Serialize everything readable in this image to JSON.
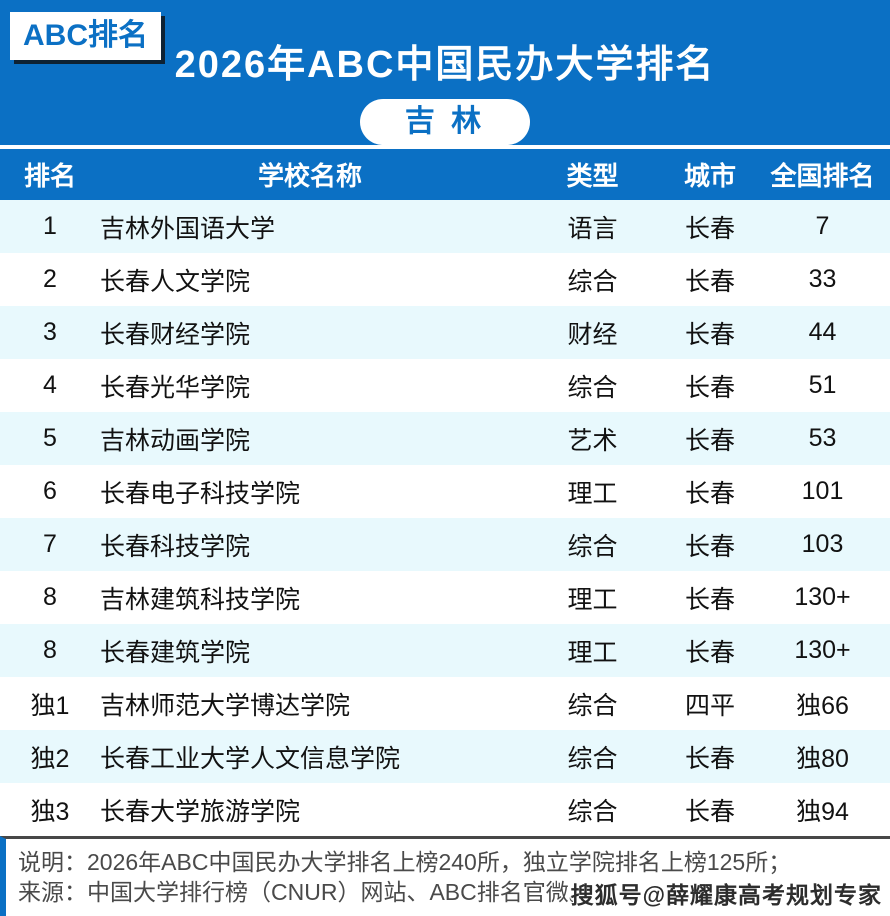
{
  "banner": {
    "badge": "ABC排名",
    "title": "2026年ABC中国民办大学排名",
    "region": "吉 林"
  },
  "colors": {
    "primary": "#0b70c4",
    "stripe": "#e8f9fd",
    "footer_text": "#4a4a4a"
  },
  "table": {
    "headers": {
      "rank": "排名",
      "school": "学校名称",
      "type": "类型",
      "city": "城市",
      "national": "全国排名"
    },
    "rows": [
      {
        "rank": "1",
        "school": "吉林外国语大学",
        "type": "语言",
        "city": "长春",
        "national": "7"
      },
      {
        "rank": "2",
        "school": "长春人文学院",
        "type": "综合",
        "city": "长春",
        "national": "33"
      },
      {
        "rank": "3",
        "school": "长春财经学院",
        "type": "财经",
        "city": "长春",
        "national": "44"
      },
      {
        "rank": "4",
        "school": "长春光华学院",
        "type": "综合",
        "city": "长春",
        "national": "51"
      },
      {
        "rank": "5",
        "school": "吉林动画学院",
        "type": "艺术",
        "city": "长春",
        "national": "53"
      },
      {
        "rank": "6",
        "school": "长春电子科技学院",
        "type": "理工",
        "city": "长春",
        "national": "101"
      },
      {
        "rank": "7",
        "school": "长春科技学院",
        "type": "综合",
        "city": "长春",
        "national": "103"
      },
      {
        "rank": "8",
        "school": "吉林建筑科技学院",
        "type": "理工",
        "city": "长春",
        "national": "130+"
      },
      {
        "rank": "8",
        "school": "长春建筑学院",
        "type": "理工",
        "city": "长春",
        "national": "130+"
      },
      {
        "rank": "独1",
        "school": "吉林师范大学博达学院",
        "type": "综合",
        "city": "四平",
        "national": "独66"
      },
      {
        "rank": "独2",
        "school": "长春工业大学人文信息学院",
        "type": "综合",
        "city": "长春",
        "national": "独80"
      },
      {
        "rank": "独3",
        "school": "长春大学旅游学院",
        "type": "综合",
        "city": "长春",
        "national": "独94"
      }
    ]
  },
  "footer": {
    "note": "说明：2026年ABC中国民办大学排名上榜240所，独立学院排名上榜125所；",
    "source": "来源：中国大学排行榜（CNUR）网站、ABC排名官微。",
    "watermark": "搜狐号@薛耀康高考规划专家"
  },
  "chart_data": {
    "type": "table",
    "title": "2026年ABC中国民办大学排名",
    "subtitle": "吉 林",
    "columns": [
      "排名",
      "学校名称",
      "类型",
      "城市",
      "全国排名"
    ],
    "rows": [
      [
        "1",
        "吉林外国语大学",
        "语言",
        "长春",
        "7"
      ],
      [
        "2",
        "长春人文学院",
        "综合",
        "长春",
        "33"
      ],
      [
        "3",
        "长春财经学院",
        "财经",
        "长春",
        "44"
      ],
      [
        "4",
        "长春光华学院",
        "综合",
        "长春",
        "51"
      ],
      [
        "5",
        "吉林动画学院",
        "艺术",
        "长春",
        "53"
      ],
      [
        "6",
        "长春电子科技学院",
        "理工",
        "长春",
        "101"
      ],
      [
        "7",
        "长春科技学院",
        "综合",
        "长春",
        "103"
      ],
      [
        "8",
        "吉林建筑科技学院",
        "理工",
        "长春",
        "130+"
      ],
      [
        "8",
        "长春建筑学院",
        "理工",
        "长春",
        "130+"
      ],
      [
        "独1",
        "吉林师范大学博达学院",
        "综合",
        "四平",
        "独66"
      ],
      [
        "独2",
        "长春工业大学人文信息学院",
        "综合",
        "长春",
        "独80"
      ],
      [
        "独3",
        "长春大学旅游学院",
        "综合",
        "长春",
        "独94"
      ]
    ],
    "notes": [
      "说明：2026年ABC中国民办大学排名上榜240所，独立学院排名上榜125所；",
      "来源：中国大学排行榜（CNUR）网站、ABC排名官微。"
    ]
  }
}
